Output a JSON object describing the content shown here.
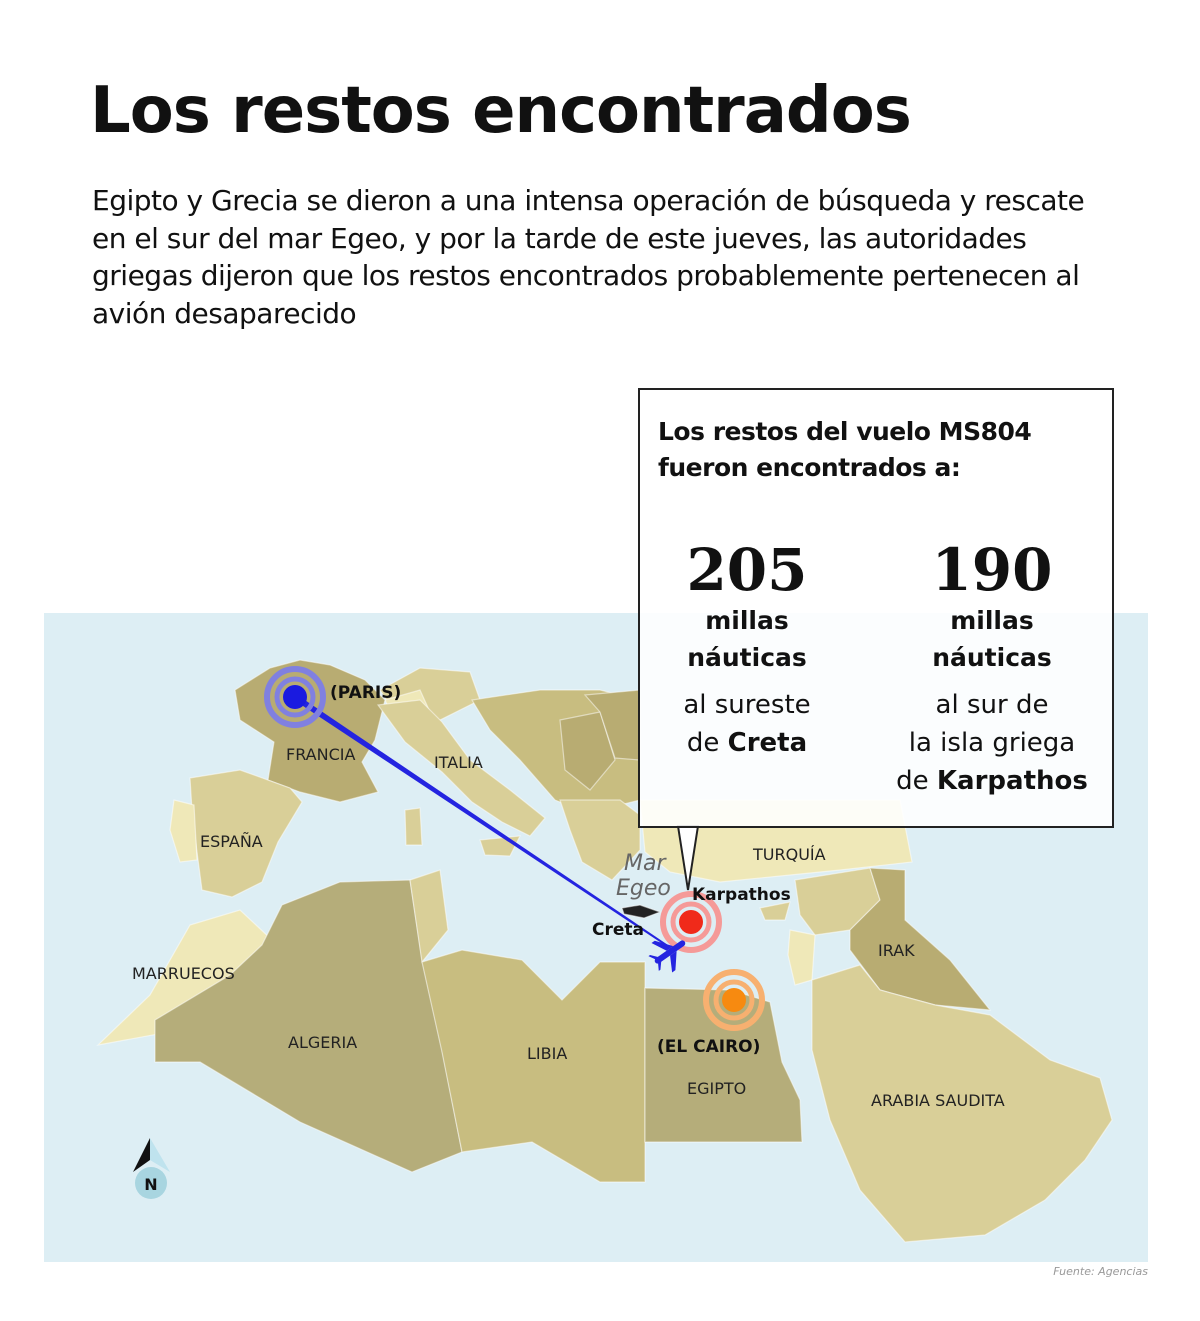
{
  "title": "Los restos encontrados",
  "subtitle": "Egipto y Grecia se dieron a una intensa operación de búsqueda y rescate en el sur del mar Egeo, y por la tarde de este jueves, las autoridades griegas dijeron que los restos encontrados probablemente pertenecen al avión desaparecido",
  "callout": {
    "heading_line1": "Los restos del vuelo MS804",
    "heading_line2": "fueron encontrados a:",
    "columns": [
      {
        "value": "205",
        "unit_line1": "millas",
        "unit_line2": "náuticas",
        "desc_line1": "al sureste",
        "desc_prefix": "de ",
        "desc_bold": "Creta"
      },
      {
        "value": "190",
        "unit_line1": "millas",
        "unit_line2": "náuticas",
        "desc_line1": "al sur de",
        "desc_line2": "la isla griega",
        "desc_prefix": "de ",
        "desc_bold": "Karpathos"
      }
    ]
  },
  "map": {
    "countries": [
      "FRANCIA",
      "ITALIA",
      "ESPAÑA",
      "MARRUECOS",
      "ALGERIA",
      "LIBIA",
      "EGIPTO",
      "TURQUÍA",
      "IRAK",
      "ARABIA SAUDITA"
    ],
    "cities": {
      "paris": "(PARIS)",
      "cairo": "(EL CAIRO)"
    },
    "places": {
      "karpathos": "Karpathos",
      "creta": "Creta",
      "sea_line1": "Mar",
      "sea_line2": "Egeo"
    },
    "north": "N",
    "colors": {
      "sea": "#ddeef4",
      "route": "#2424e0",
      "crash": "#f02a1a",
      "cairo": "#f78a10",
      "paris": "#1a1ae0"
    }
  },
  "source": "Fuente: Agencias"
}
